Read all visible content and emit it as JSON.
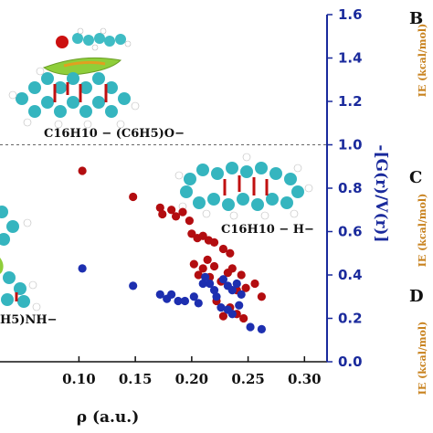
{
  "colors": {
    "axis": "#1a2a9c",
    "red": "#b30d10",
    "blue": "#1d2fb0",
    "side_label": "#c8821e",
    "dashed": "#666666"
  },
  "chart_data": {
    "type": "scatter",
    "xlabel": "ρ (a.u.)",
    "ylabel": "-[G(r)/V(r)]",
    "xlim": [
      0.03,
      0.32
    ],
    "ylim": [
      0.0,
      1.6
    ],
    "xticks": [
      "0.10",
      "0.15",
      "0.20",
      "0.25",
      "0.30"
    ],
    "xtick_values": [
      0.1,
      0.15,
      0.2,
      0.25,
      0.3
    ],
    "yticks": [
      "0.0",
      "0.2",
      "0.4",
      "0.6",
      "0.8",
      "1.0",
      "1.2",
      "1.4",
      "1.6"
    ],
    "ytick_values": [
      0.0,
      0.2,
      0.4,
      0.6,
      0.8,
      1.0,
      1.2,
      1.4,
      1.6
    ],
    "reference_line_y": 1.0,
    "grid": false,
    "series": [
      {
        "color": "red",
        "points": [
          [
            0.103,
            0.88
          ],
          [
            0.148,
            0.76
          ],
          [
            0.172,
            0.71
          ],
          [
            0.174,
            0.68
          ],
          [
            0.182,
            0.7
          ],
          [
            0.186,
            0.67
          ],
          [
            0.192,
            0.69
          ],
          [
            0.198,
            0.65
          ],
          [
            0.2,
            0.59
          ],
          [
            0.205,
            0.57
          ],
          [
            0.21,
            0.58
          ],
          [
            0.215,
            0.56
          ],
          [
            0.22,
            0.55
          ],
          [
            0.228,
            0.52
          ],
          [
            0.234,
            0.5
          ],
          [
            0.202,
            0.45
          ],
          [
            0.21,
            0.43
          ],
          [
            0.214,
            0.47
          ],
          [
            0.22,
            0.44
          ],
          [
            0.206,
            0.4
          ],
          [
            0.216,
            0.39
          ],
          [
            0.226,
            0.37
          ],
          [
            0.232,
            0.41
          ],
          [
            0.236,
            0.43
          ],
          [
            0.244,
            0.4
          ],
          [
            0.24,
            0.33
          ],
          [
            0.248,
            0.34
          ],
          [
            0.256,
            0.36
          ],
          [
            0.262,
            0.3
          ],
          [
            0.222,
            0.28
          ],
          [
            0.234,
            0.25
          ],
          [
            0.24,
            0.22
          ],
          [
            0.246,
            0.2
          ],
          [
            0.228,
            0.21
          ]
        ]
      },
      {
        "color": "blue",
        "points": [
          [
            0.103,
            0.43
          ],
          [
            0.148,
            0.35
          ],
          [
            0.172,
            0.31
          ],
          [
            0.178,
            0.29
          ],
          [
            0.182,
            0.31
          ],
          [
            0.188,
            0.28
          ],
          [
            0.194,
            0.28
          ],
          [
            0.202,
            0.3
          ],
          [
            0.206,
            0.27
          ],
          [
            0.21,
            0.36
          ],
          [
            0.212,
            0.39
          ],
          [
            0.216,
            0.36
          ],
          [
            0.22,
            0.33
          ],
          [
            0.222,
            0.3
          ],
          [
            0.228,
            0.38
          ],
          [
            0.232,
            0.35
          ],
          [
            0.236,
            0.33
          ],
          [
            0.24,
            0.36
          ],
          [
            0.244,
            0.31
          ],
          [
            0.226,
            0.25
          ],
          [
            0.232,
            0.24
          ],
          [
            0.236,
            0.22
          ],
          [
            0.242,
            0.26
          ],
          [
            0.252,
            0.16
          ],
          [
            0.262,
            0.15
          ]
        ]
      }
    ]
  },
  "labels": {
    "mol_top": "C16H10 − (C6H5)O−",
    "mol_right": "C16H10 − H−",
    "mol_left_partial": "H5)NH−"
  },
  "side_panels": [
    {
      "letter": "B",
      "label": "IE (kcal/mol)"
    },
    {
      "letter": "C",
      "label": "IE (kcal/mol)"
    },
    {
      "letter": "D",
      "label": "IE (kcal/mol)"
    }
  ]
}
